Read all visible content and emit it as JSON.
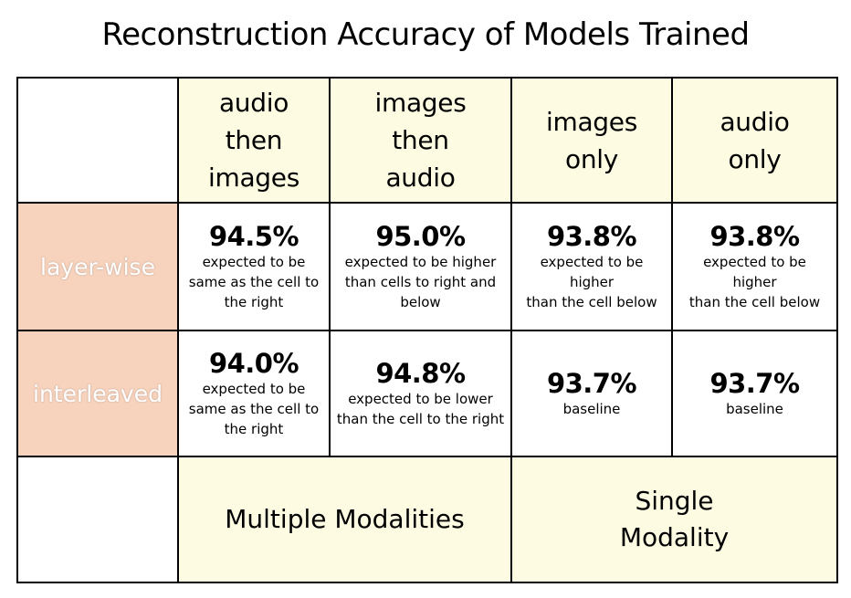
{
  "title": "Reconstruction Accuracy of Models Trained",
  "columns": [
    "audio\nthen\nimages",
    "images\nthen\naudio",
    "images\nonly",
    "audio\nonly"
  ],
  "rows": [
    {
      "label": "layer-wise",
      "cells": [
        {
          "value": "94.5%",
          "note": "expected to be\nsame as the cell to\nthe right"
        },
        {
          "value": "95.0%",
          "note": "expected to be higher\nthan cells to right and\nbelow"
        },
        {
          "value": "93.8%",
          "note": "expected to be\nhigher\nthan the cell below"
        },
        {
          "value": "93.8%",
          "note": "expected to be\nhigher\nthan the cell below"
        }
      ]
    },
    {
      "label": "interleaved",
      "cells": [
        {
          "value": "94.0%",
          "note": "expected to be\nsame as the cell to\nthe right"
        },
        {
          "value": "94.8%",
          "note": "expected to be lower\nthan the cell to the right"
        },
        {
          "value": "93.7%",
          "note": "baseline"
        },
        {
          "value": "93.7%",
          "note": "baseline"
        }
      ]
    }
  ],
  "groups": [
    "Multiple Modalities",
    "Single\nModality"
  ],
  "colors": {
    "header_bg": "#fdfbe1",
    "row_label_bg": "#f7d3bd",
    "border": "#000000"
  }
}
